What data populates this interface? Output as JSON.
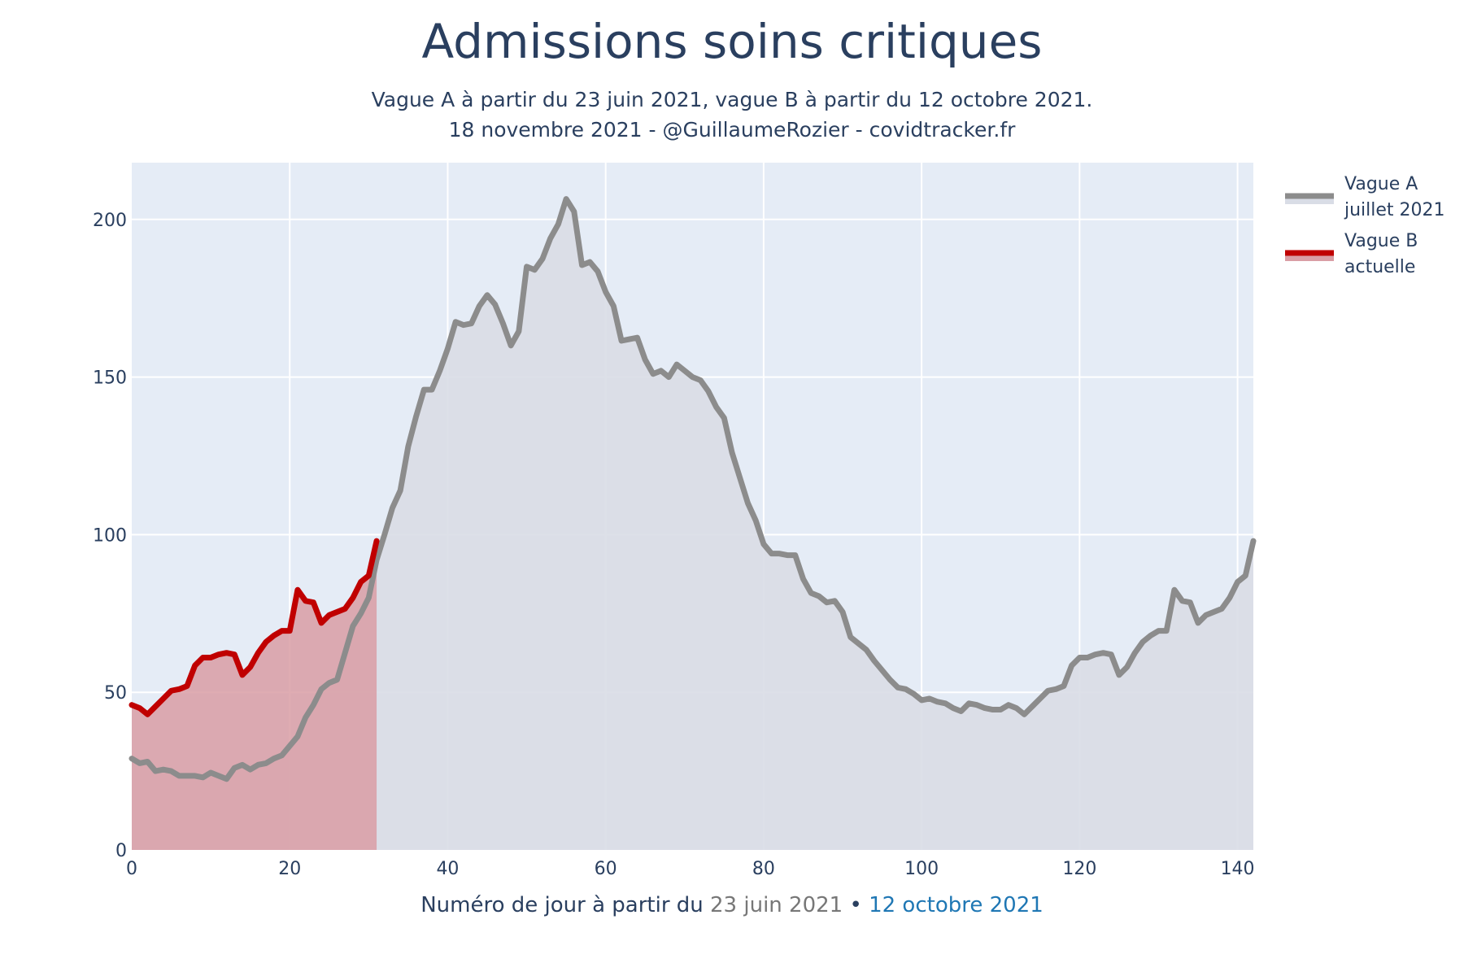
{
  "chart_data": {
    "type": "area",
    "title": "Admissions soins critiques",
    "subtitle_line1": "Vague A à partir du 23 juin 2021, vague B à partir du 12 octobre 2021.",
    "subtitle_line2": "18 novembre 2021 - @GuillaumeRozier - covidtracker.fr",
    "xlabel": {
      "prefix": "Numéro de jour à partir du",
      "date_a": "23 juin 2021",
      "separator": "•",
      "date_b": "12 octobre 2021"
    },
    "xlim": [
      0,
      142
    ],
    "ylim": [
      0,
      218
    ],
    "x_ticks": [
      0,
      20,
      40,
      60,
      80,
      100,
      120,
      140
    ],
    "y_ticks": [
      0,
      50,
      100,
      150,
      200
    ],
    "grid": true,
    "legend_position": "right",
    "series": [
      {
        "name": "Vague A",
        "name_line2": "juillet 2021",
        "color": "#8c8c8c",
        "fill_color": "#d9dde6",
        "x": [
          0,
          1,
          2,
          3,
          4,
          5,
          6,
          7,
          8,
          9,
          10,
          11,
          12,
          13,
          14,
          15,
          16,
          17,
          18,
          19,
          20,
          21,
          22,
          23,
          24,
          25,
          26,
          27,
          28,
          29,
          30,
          31,
          32,
          33,
          34,
          35,
          36,
          37,
          38,
          39,
          40,
          41,
          42,
          43,
          44,
          45,
          46,
          47,
          48,
          49,
          50,
          51,
          52,
          53,
          54,
          55,
          56,
          57,
          58,
          59,
          60,
          61,
          62,
          63,
          64,
          65,
          66,
          67,
          68,
          69,
          70,
          71,
          72,
          73,
          74,
          75,
          76,
          77,
          78,
          79,
          80,
          81,
          82,
          83,
          84,
          85,
          86,
          87,
          88,
          89,
          90,
          91,
          92,
          93,
          94,
          95,
          96,
          97,
          98,
          99,
          100,
          101,
          102,
          103,
          104,
          105,
          106,
          107,
          108,
          109,
          110,
          111,
          112,
          113,
          114,
          115,
          116,
          117,
          118,
          119,
          120,
          121,
          122,
          123,
          124,
          125,
          126,
          127,
          128,
          129,
          130,
          131,
          132,
          133,
          134,
          135,
          136,
          137,
          138,
          139,
          140,
          141,
          142
        ],
        "values": [
          29,
          27.5,
          28,
          25,
          25.5,
          25,
          23.5,
          23.5,
          23.5,
          23,
          24.5,
          23.5,
          22.5,
          26,
          27,
          25.5,
          27,
          27.5,
          29,
          30,
          33,
          36,
          42,
          46,
          51,
          53,
          54,
          62.5,
          71,
          75,
          80,
          92,
          100,
          108.5,
          114,
          128,
          137.5,
          146,
          146,
          152,
          159,
          167.5,
          166.5,
          167,
          172.5,
          176,
          173,
          167,
          160,
          164.5,
          185,
          184,
          187.5,
          194,
          198.5,
          206.5,
          202.5,
          185.5,
          186.5,
          183.5,
          177,
          172.5,
          161.5,
          162,
          162.5,
          155.5,
          151,
          152,
          150,
          154,
          152,
          150,
          149,
          145.5,
          140.5,
          137,
          126,
          118,
          110,
          104.5,
          97,
          94,
          94,
          93.5,
          93.5,
          86,
          81.5,
          80.5,
          78.5,
          79,
          75.5,
          67.5,
          65.5,
          63.5,
          60,
          57,
          54,
          51.5,
          51,
          49.5,
          47.5,
          48,
          47,
          46.5,
          45,
          44,
          46.5,
          46,
          45,
          44.5,
          44.5,
          46,
          45,
          43,
          45.5,
          48,
          50.5,
          51,
          52,
          58.5,
          61,
          61,
          62,
          62.5,
          62,
          55.5,
          58,
          62.5,
          66,
          68,
          69.5,
          69.5,
          82.5,
          79,
          78.5,
          72,
          74.5,
          75.5,
          76.5,
          80,
          85,
          87,
          98
        ]
      },
      {
        "name": "Vague B",
        "name_line2": "actuelle",
        "color": "#c00000",
        "fill_color": "#d99ea5",
        "x": [
          0,
          1,
          2,
          3,
          4,
          5,
          6,
          7,
          8,
          9,
          10,
          11,
          12,
          13,
          14,
          15,
          16,
          17,
          18,
          19,
          20,
          21,
          22,
          23,
          24,
          25,
          26,
          27,
          28,
          29,
          30,
          31
        ],
        "values": [
          46,
          45,
          43,
          45.5,
          48,
          50.5,
          51,
          52,
          58.5,
          61,
          61,
          62,
          62.5,
          62,
          55.5,
          58,
          62.5,
          66,
          68,
          69.5,
          69.5,
          82.5,
          79,
          78.5,
          72,
          74.5,
          75.5,
          76.5,
          80,
          85,
          87,
          98
        ]
      }
    ]
  }
}
